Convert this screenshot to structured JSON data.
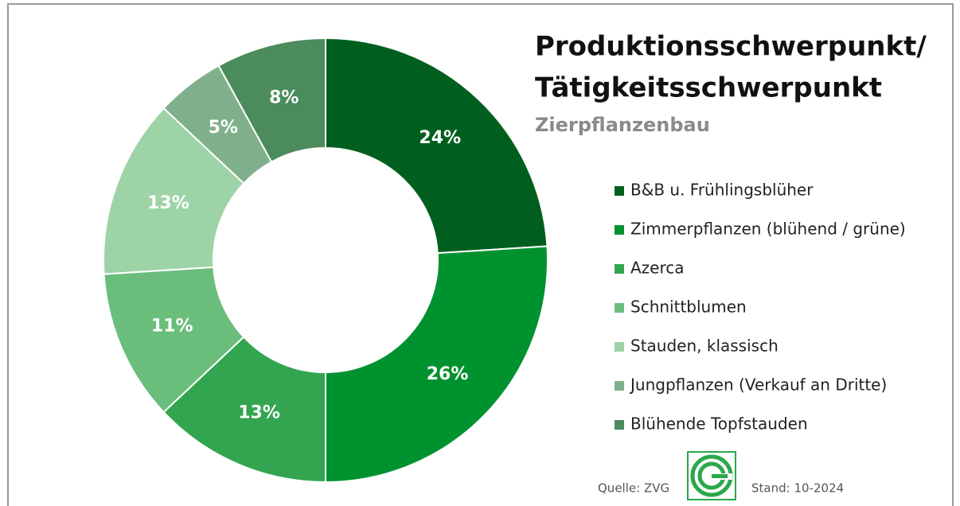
{
  "chart_data": {
    "type": "donut",
    "title": [
      "Produktionsschwerpunkt/",
      "Tätigkeitsschwerpunkt"
    ],
    "subtitle": "Zierpflanzenbau",
    "categories": [
      "B&B u. Frühlingsblüher",
      "Zimmerpflanzen (blühend / grüne)",
      "Azerca",
      "Schnittblumen",
      "Stauden, klassisch",
      "Jungpflanzen (Verkauf an Dritte)",
      "Blühende Topfstauden"
    ],
    "values": [
      24,
      26,
      13,
      11,
      13,
      5,
      8
    ],
    "value_labels": [
      "24%",
      "26%",
      "13%",
      "11%",
      "13%",
      "5%",
      "8%"
    ],
    "colors": [
      "#005f1f",
      "#00922f",
      "#33a550",
      "#6bbd7b",
      "#9dd3a6",
      "#80b08b",
      "#4b8b5c"
    ],
    "legend": "right",
    "source": "Quelle: ZVG",
    "date": "Stand: 10-2024"
  }
}
